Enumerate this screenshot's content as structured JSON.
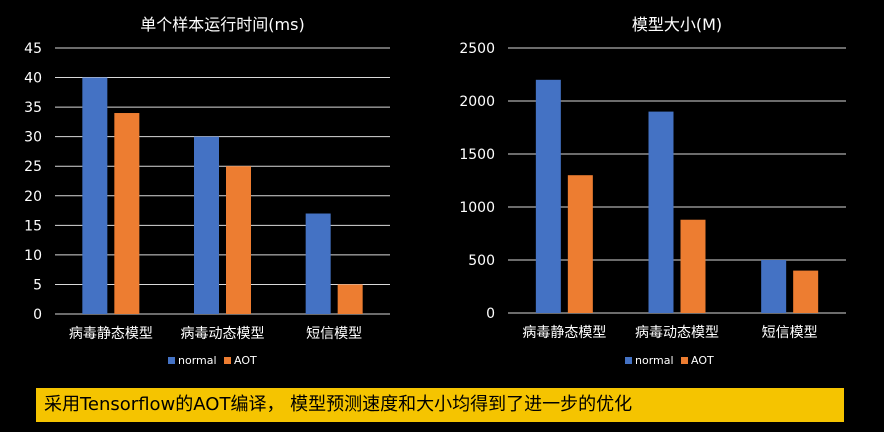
{
  "chart_data": [
    {
      "type": "bar",
      "title": "单个样本运行时间(ms)",
      "categories": [
        "病毒静态模型",
        "病毒动态模型",
        "短信模型"
      ],
      "series": [
        {
          "name": "normal",
          "values": [
            40,
            30,
            17
          ]
        },
        {
          "name": "AOT",
          "values": [
            34,
            25,
            5
          ]
        }
      ],
      "ylim": [
        0,
        45
      ],
      "yticks": [
        0,
        5,
        10,
        15,
        20,
        25,
        30,
        35,
        40,
        45
      ],
      "grid": true,
      "legend": "bottom"
    },
    {
      "type": "bar",
      "title": "模型大小(M)",
      "categories": [
        "病毒静态模型",
        "病毒动态模型",
        "短信模型"
      ],
      "series": [
        {
          "name": "normal",
          "values": [
            2200,
            1900,
            500
          ]
        },
        {
          "name": "AOT",
          "values": [
            1300,
            880,
            400
          ]
        }
      ],
      "ylim": [
        0,
        2500
      ],
      "yticks": [
        0,
        500,
        1000,
        1500,
        2000,
        2500
      ],
      "grid": true,
      "legend": "bottom"
    }
  ],
  "colors": {
    "normal": "#4472c4",
    "AOT": "#ed7d31",
    "grid": "#d9d9d9",
    "text": "#ffffff",
    "caption_bg": "#f5c400"
  },
  "caption": "采用Tensorflow的AOT编译， 模型预测速度和大小均得到了进一步的优化"
}
